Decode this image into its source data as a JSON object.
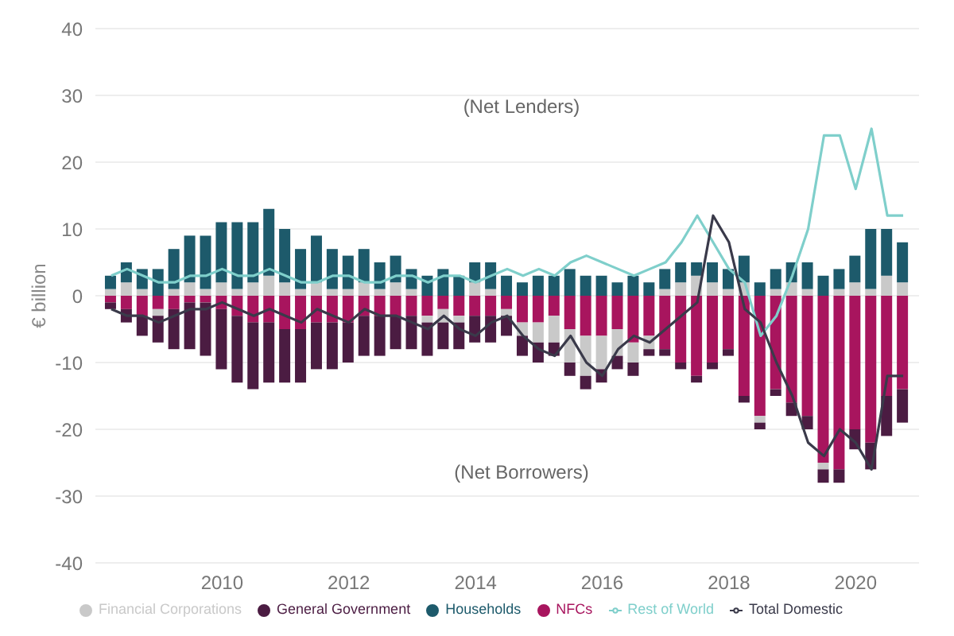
{
  "chart_data": {
    "type": "bar",
    "stacked": true,
    "ylabel": "€ billion",
    "annotations": [
      "(Net Lenders)",
      "(Net Borrowers)"
    ],
    "x": [
      2008.25,
      2008.5,
      2008.75,
      2009,
      2009.25,
      2009.5,
      2009.75,
      2010,
      2010.25,
      2010.5,
      2010.75,
      2011,
      2011.25,
      2011.5,
      2011.75,
      2012,
      2012.25,
      2012.5,
      2012.75,
      2013,
      2013.25,
      2013.5,
      2013.75,
      2014,
      2014.25,
      2014.5,
      2014.75,
      2015,
      2015.25,
      2015.5,
      2015.75,
      2016,
      2016.25,
      2016.5,
      2016.75,
      2017,
      2017.25,
      2017.5,
      2017.75,
      2018,
      2018.25,
      2018.5,
      2018.75,
      2019,
      2019.25,
      2019.5,
      2019.75,
      2020,
      2020.25,
      2020.5,
      2020.75
    ],
    "xlim": [
      2008,
      2021
    ],
    "xticks": [
      2010,
      2012,
      2014,
      2016,
      2018,
      2020
    ],
    "ylim": [
      -40,
      40
    ],
    "yticks": [
      -40,
      -30,
      -20,
      -10,
      0,
      10,
      20,
      30,
      40
    ],
    "grid": "y",
    "legend": "bottom",
    "series": [
      {
        "name": "NFCs",
        "color": "#a8155e",
        "values": [
          -1,
          -2,
          -3,
          -2,
          -2,
          -1,
          -1,
          -2,
          -3,
          -4,
          -4,
          -5,
          -5,
          -4,
          -4,
          -4,
          -3,
          -3,
          -3,
          -3,
          -3,
          -2,
          -3,
          -3,
          -3,
          -2,
          -4,
          -4,
          -3,
          -5,
          -6,
          -6,
          -5,
          -7,
          -6,
          -8,
          -10,
          -12,
          -10,
          -8,
          -15,
          -18,
          -14,
          -16,
          -18,
          -25,
          -26,
          -20,
          -22,
          -15,
          -14
        ]
      },
      {
        "name": "Financial Corporations",
        "color": "#c9c9c9",
        "values": [
          1,
          2,
          1,
          -1,
          1,
          2,
          1,
          2,
          1,
          2,
          3,
          2,
          1,
          2,
          1,
          1,
          2,
          1,
          2,
          1,
          -1,
          -2,
          -1,
          2,
          1,
          -1,
          -2,
          -3,
          -4,
          -5,
          -6,
          -5,
          -4,
          -3,
          -2,
          1,
          2,
          3,
          2,
          1,
          2,
          -1,
          1,
          2,
          1,
          -1,
          1,
          2,
          1,
          3,
          2
        ]
      },
      {
        "name": "General Government",
        "color": "#4b1c42",
        "values": [
          -1,
          -2,
          -3,
          -4,
          -6,
          -7,
          -8,
          -9,
          -10,
          -10,
          -9,
          -8,
          -8,
          -7,
          -7,
          -6,
          -6,
          -6,
          -5,
          -5,
          -5,
          -4,
          -4,
          -4,
          -4,
          -3,
          -3,
          -3,
          -2,
          -2,
          -2,
          -2,
          -2,
          -2,
          -1,
          -1,
          -1,
          -1,
          -1,
          -1,
          -1,
          -1,
          -1,
          -2,
          -2,
          -2,
          -2,
          -3,
          -4,
          -6,
          -5
        ]
      },
      {
        "name": "Households",
        "color": "#1d5a6b",
        "values": [
          2,
          3,
          3,
          4,
          6,
          7,
          8,
          9,
          10,
          9,
          10,
          8,
          6,
          7,
          6,
          5,
          5,
          4,
          4,
          3,
          3,
          4,
          3,
          3,
          4,
          3,
          2,
          3,
          3,
          4,
          3,
          3,
          2,
          3,
          2,
          3,
          3,
          2,
          3,
          3,
          4,
          2,
          3,
          3,
          4,
          3,
          3,
          4,
          9,
          7,
          6
        ]
      },
      {
        "name": "Rest of World",
        "type": "line",
        "color": "#7fcfcb",
        "values": [
          3,
          4,
          3,
          2,
          2,
          3,
          3,
          4,
          3,
          3,
          4,
          3,
          2,
          2,
          3,
          3,
          2,
          2,
          3,
          3,
          2,
          3,
          3,
          2,
          3,
          4,
          3,
          4,
          3,
          5,
          6,
          5,
          4,
          3,
          4,
          5,
          8,
          12,
          8,
          4,
          2,
          -6,
          -3,
          3,
          10,
          24,
          24,
          16,
          25,
          12,
          12
        ]
      },
      {
        "name": "Total Domestic",
        "type": "line",
        "color": "#3a3a4a",
        "values": [
          -2,
          -3,
          -3,
          -4,
          -3,
          -2,
          -2,
          -1,
          -2,
          -3,
          -2,
          -3,
          -4,
          -2,
          -3,
          -4,
          -2,
          -3,
          -3,
          -4,
          -5,
          -3,
          -5,
          -6,
          -4,
          -3,
          -6,
          -8,
          -9,
          -6,
          -10,
          -12,
          -8,
          -6,
          -7,
          -5,
          -3,
          -1,
          12,
          8,
          -2,
          -4,
          -10,
          -15,
          -22,
          -24,
          -20,
          -22,
          -26,
          -12,
          -12
        ]
      }
    ]
  }
}
